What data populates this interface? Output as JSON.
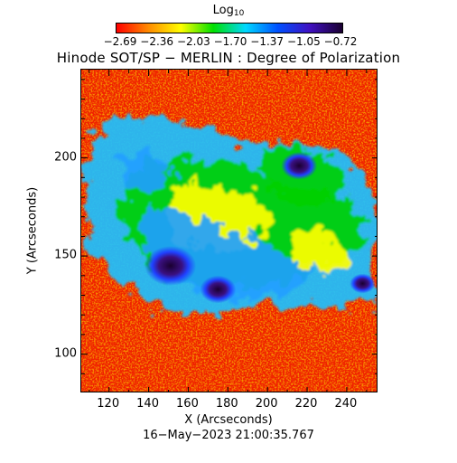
{
  "colorbar": {
    "title": "Log",
    "title_subscript": "10",
    "tick_labels": [
      "−2.69",
      "−2.36",
      "−2.03",
      "−1.70",
      "−1.37",
      "−1.05",
      "−0.72"
    ],
    "value_range": [
      -2.69,
      -0.72
    ],
    "colors": [
      "#ff0000",
      "#ff8c00",
      "#ffff00",
      "#00e000",
      "#00d8ff",
      "#0050ff",
      "#4010c0",
      "#1a0030"
    ]
  },
  "title": "Hinode SOT/SP − MERLIN : Degree of Polarization",
  "x_axis": {
    "label": "X (Arcseconds)",
    "range": [
      106,
      256
    ],
    "ticks": [
      120,
      140,
      160,
      180,
      200,
      220,
      240
    ],
    "tick_labels": [
      "120",
      "140",
      "160",
      "180",
      "200",
      "220",
      "240"
    ]
  },
  "y_axis": {
    "label": "Y (Arcseconds)",
    "range": [
      80,
      245
    ],
    "ticks": [
      100,
      150,
      200
    ],
    "tick_labels": [
      "100",
      "150",
      "200"
    ]
  },
  "timestamp": "16−May−2023 21:00:35.767",
  "map": {
    "background_level": "red",
    "features": [
      {
        "name": "sunspot",
        "x": 151,
        "y": 145,
        "size": 10,
        "level": "umbra"
      },
      {
        "name": "sunspot",
        "x": 175,
        "y": 133,
        "size": 7,
        "level": "umbra"
      },
      {
        "name": "pore",
        "x": 216,
        "y": 196,
        "size": 7,
        "level": "umbra"
      },
      {
        "name": "pore",
        "x": 248,
        "y": 136,
        "size": 5,
        "level": "umbra"
      }
    ]
  }
}
